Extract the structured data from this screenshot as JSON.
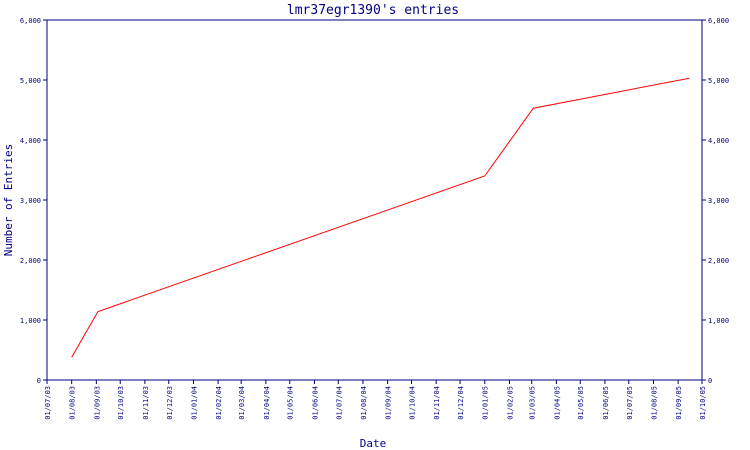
{
  "chart_data": {
    "type": "line",
    "title": "lmr37egr1390's entries",
    "xlabel": "Date",
    "ylabel": "Number of Entries",
    "ylim": [
      0,
      6000
    ],
    "yticks": [
      0,
      1000,
      2000,
      3000,
      4000,
      5000,
      6000
    ],
    "ytick_labels": [
      "0",
      "1,000",
      "2,000",
      "3,000",
      "4,000",
      "5,000",
      "6,000"
    ],
    "xtick_labels": [
      "01/07/03",
      "01/08/03",
      "01/09/03",
      "01/10/03",
      "01/11/03",
      "01/12/03",
      "01/01/04",
      "01/02/04",
      "01/03/04",
      "01/04/04",
      "01/05/04",
      "01/06/04",
      "01/07/04",
      "01/08/04",
      "01/09/04",
      "01/10/04",
      "01/11/04",
      "01/12/04",
      "01/01/05",
      "01/02/05",
      "01/03/05",
      "01/04/05",
      "01/05/05",
      "01/06/05",
      "01/07/05",
      "01/08/05",
      "01/09/05",
      "01/10/05"
    ],
    "series": [
      {
        "color": "#ff0000",
        "points": [
          {
            "x": "2003-08-01",
            "y": 380
          },
          {
            "x": "2003-09-03",
            "y": 1140
          },
          {
            "x": "2005-01-01",
            "y": 3400
          },
          {
            "x": "2005-03-03",
            "y": 4530
          },
          {
            "x": "2005-09-15",
            "y": 5030
          }
        ]
      }
    ],
    "grid": false,
    "right_axis": true
  }
}
